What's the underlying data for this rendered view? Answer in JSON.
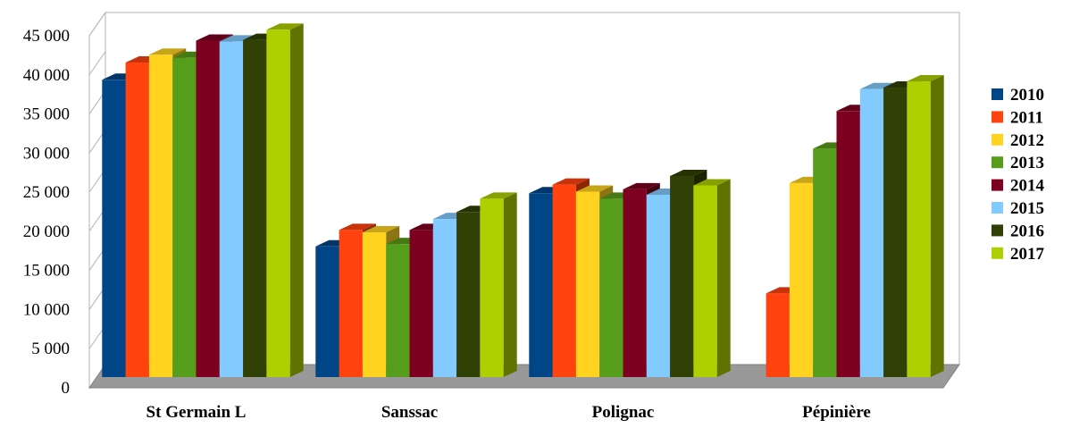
{
  "chart_data": {
    "type": "bar",
    "title": "",
    "xlabel": "",
    "ylabel": "",
    "categories": [
      "St Germain L",
      "Sanssac",
      "Polignac",
      "Pépinière"
    ],
    "ylim": [
      0,
      45000
    ],
    "yticks": [
      0,
      5000,
      10000,
      15000,
      20000,
      25000,
      30000,
      35000,
      40000,
      45000
    ],
    "ytick_labels": [
      "0",
      "5 000",
      "10 000",
      "15 000",
      "20 000",
      "25 000",
      "30 000",
      "35 000",
      "40 000",
      "45 000"
    ],
    "grid": true,
    "legend_position": "right",
    "series": [
      {
        "name": "2010",
        "color": "#004586",
        "values": [
          38000,
          16700,
          23500,
          null
        ]
      },
      {
        "name": "2011",
        "color": "#ff420e",
        "values": [
          40200,
          18800,
          24600,
          10700
        ]
      },
      {
        "name": "2012",
        "color": "#ffd320",
        "values": [
          41200,
          18500,
          23700,
          24800
        ]
      },
      {
        "name": "2013",
        "color": "#579d1c",
        "values": [
          40800,
          17000,
          22800,
          29200
        ]
      },
      {
        "name": "2014",
        "color": "#7e0021",
        "values": [
          43000,
          18800,
          24000,
          34000
        ]
      },
      {
        "name": "2015",
        "color": "#83caff",
        "values": [
          42900,
          20200,
          23300,
          36800
        ]
      },
      {
        "name": "2016",
        "color": "#314004",
        "values": [
          43100,
          21100,
          25700,
          37000
        ]
      },
      {
        "name": "2017",
        "color": "#aecf00",
        "values": [
          44400,
          22800,
          24500,
          37800
        ]
      }
    ]
  }
}
